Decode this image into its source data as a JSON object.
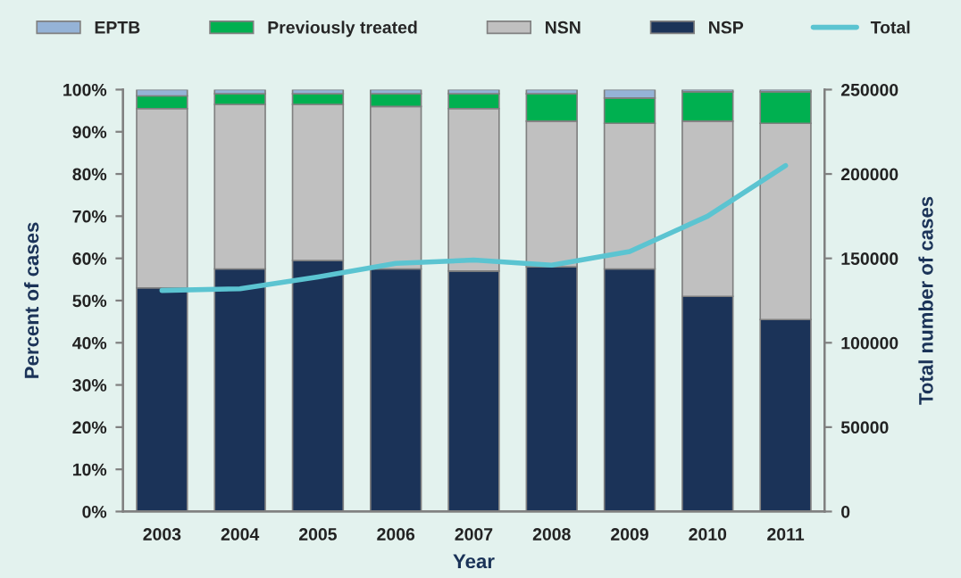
{
  "chart_data": {
    "type": "bar",
    "stacked": true,
    "xlabel": "Year",
    "ylabel": "Percent of cases",
    "y2label": "Total number of cases",
    "categories": [
      "2003",
      "2004",
      "2005",
      "2006",
      "2007",
      "2008",
      "2009",
      "2010",
      "2011"
    ],
    "series": [
      {
        "name": "NSP",
        "color": "#1b3358",
        "values": [
          53,
          57.5,
          59.5,
          57.5,
          57,
          58,
          57.5,
          51,
          45.5
        ]
      },
      {
        "name": "NSN",
        "color": "#c0c0c0",
        "values": [
          42.5,
          39,
          37,
          38.5,
          38.5,
          34.5,
          34.5,
          41.5,
          46.5
        ]
      },
      {
        "name": "Previously treated",
        "color": "#00b050",
        "values": [
          3,
          2.5,
          2.5,
          3,
          3.5,
          6.5,
          6,
          7,
          7.5
        ]
      },
      {
        "name": "EPTB",
        "color": "#95b3d7",
        "values": [
          1.5,
          1,
          1,
          1,
          1,
          1,
          2,
          0.5,
          0.5
        ]
      },
      {
        "name": "Total",
        "type": "line",
        "axis": "y2",
        "color": "#5bc4d1",
        "values": [
          131000,
          132000,
          139000,
          147000,
          149000,
          146000,
          154000,
          175000,
          205000
        ]
      }
    ],
    "ylim": [
      0,
      100
    ],
    "yticks": [
      {
        "value": 0,
        "label": "0%"
      },
      {
        "value": 10,
        "label": "10%"
      },
      {
        "value": 20,
        "label": "20%"
      },
      {
        "value": 30,
        "label": "30%"
      },
      {
        "value": 40,
        "label": "40%"
      },
      {
        "value": 50,
        "label": "50%"
      },
      {
        "value": 60,
        "label": "60%"
      },
      {
        "value": 70,
        "label": "70%"
      },
      {
        "value": 80,
        "label": "80%"
      },
      {
        "value": 90,
        "label": "90%"
      },
      {
        "value": 100,
        "label": "100%"
      }
    ],
    "y2lim": [
      0,
      250000
    ],
    "y2ticks": [
      0,
      50000,
      100000,
      150000,
      200000,
      250000
    ],
    "legend": "top",
    "grid": false
  }
}
